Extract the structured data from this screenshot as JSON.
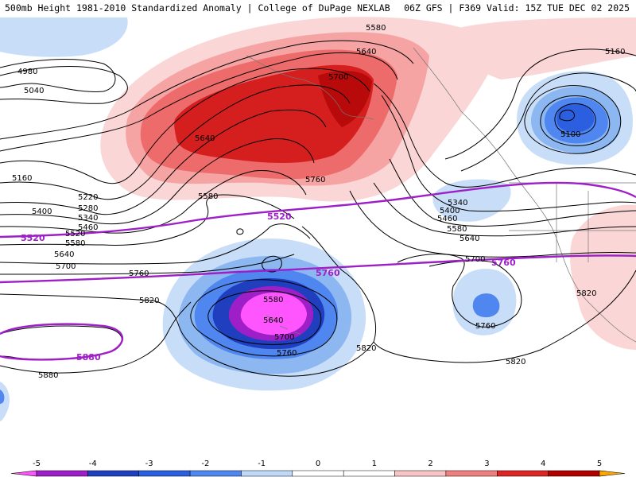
{
  "header": {
    "title": "500mb Height 1981-2010 Standardized Anomaly | College of DuPage NEXLAB",
    "run_info": "06Z GFS | F369 Valid: 15Z TUE DEC 02 2025"
  },
  "contour_labels": [
    {
      "text": "4980"
    },
    {
      "text": "5040"
    },
    {
      "text": "5160"
    },
    {
      "text": "5220"
    },
    {
      "text": "5280"
    },
    {
      "text": "5340"
    },
    {
      "text": "5400"
    },
    {
      "text": "5460"
    },
    {
      "text": "5520"
    },
    {
      "text": "5580"
    },
    {
      "text": "5640"
    },
    {
      "text": "5700"
    },
    {
      "text": "5760"
    },
    {
      "text": "5820"
    },
    {
      "text": "5880"
    },
    {
      "text": "5580"
    },
    {
      "text": "5640"
    },
    {
      "text": "5700"
    },
    {
      "text": "5640"
    },
    {
      "text": "5760"
    },
    {
      "text": "5580"
    },
    {
      "text": "5580"
    },
    {
      "text": "5640"
    },
    {
      "text": "5700"
    },
    {
      "text": "5760"
    },
    {
      "text": "5820"
    },
    {
      "text": "5820"
    },
    {
      "text": "5760"
    },
    {
      "text": "5100"
    },
    {
      "text": "5160"
    },
    {
      "text": "5340"
    },
    {
      "text": "5400"
    },
    {
      "text": "5460"
    },
    {
      "text": "5580"
    },
    {
      "text": "5640"
    },
    {
      "text": "5700"
    },
    {
      "text": "5820"
    }
  ],
  "highlight_labels": [
    {
      "text": "5520"
    },
    {
      "text": "5520"
    },
    {
      "text": "5760"
    },
    {
      "text": "5760"
    },
    {
      "text": "5880"
    }
  ],
  "legend": {
    "ticks": [
      "-5",
      "-4",
      "-3",
      "-2",
      "-1",
      "0",
      "1",
      "2",
      "3",
      "4",
      "5"
    ],
    "colors": [
      "#ff55ff",
      "#9e1fc7",
      "#1f3fbf",
      "#2b5fe0",
      "#4f86f0",
      "#bfdaf8",
      "#ffffff",
      "#ffffff",
      "#f8c5c5",
      "#f07f7f",
      "#dc2626",
      "#b00000",
      "#ffa500"
    ]
  }
}
